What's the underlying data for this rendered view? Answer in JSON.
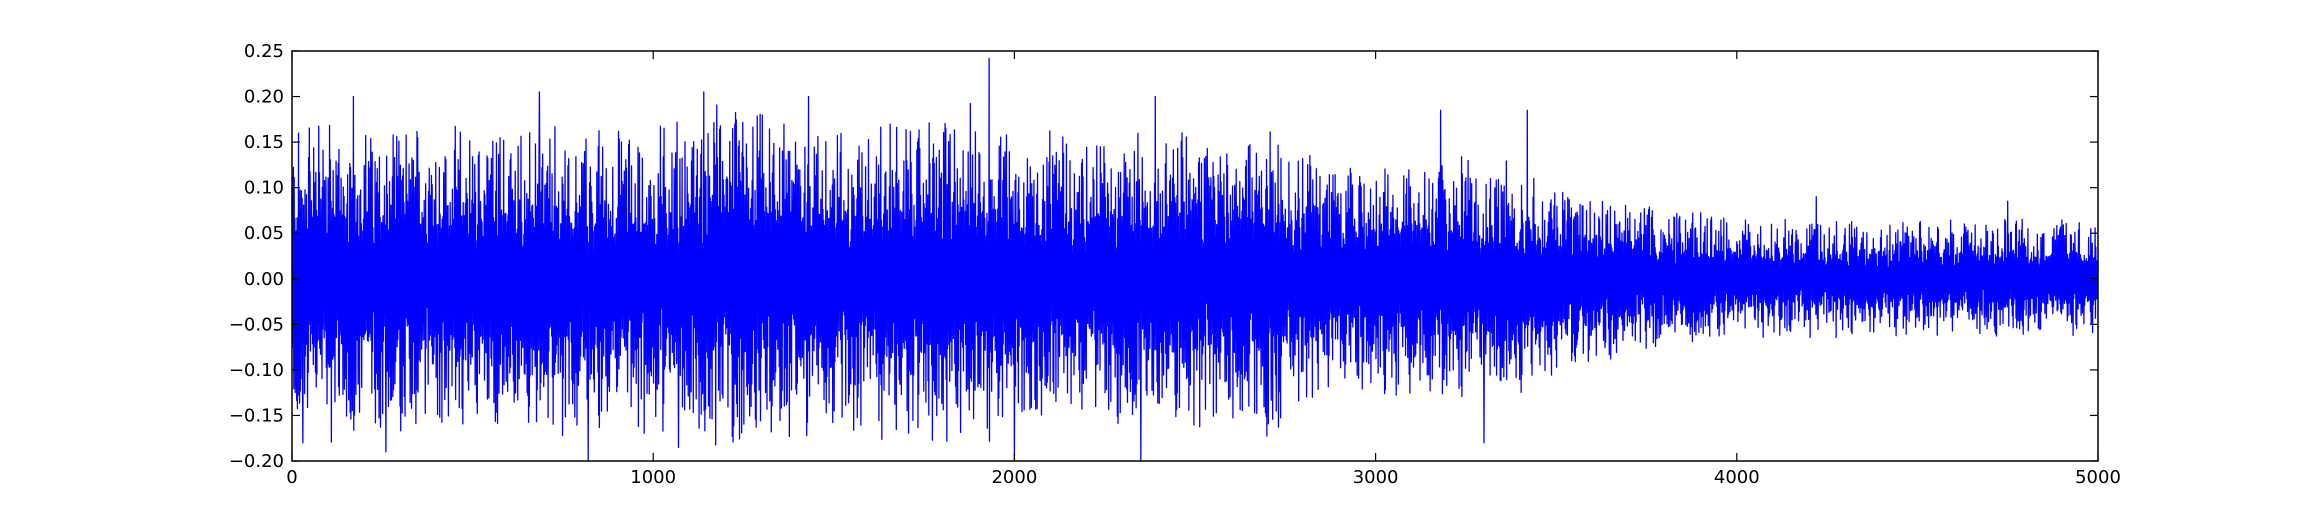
{
  "chart_data": {
    "type": "line",
    "title": "",
    "xlabel": "",
    "ylabel": "",
    "xlim": [
      0,
      5000
    ],
    "ylim": [
      -0.2,
      0.25
    ],
    "grid": false,
    "legend": "none",
    "x_ticks": [
      0,
      1000,
      2000,
      3000,
      4000,
      5000
    ],
    "x_tick_labels": [
      "0",
      "1000",
      "2000",
      "3000",
      "4000",
      "5000"
    ],
    "y_ticks": [
      -0.2,
      -0.15,
      -0.1,
      -0.05,
      0.0,
      0.05,
      0.1,
      0.15,
      0.2,
      0.25
    ],
    "y_tick_labels": [
      "−0.20",
      "−0.15",
      "−0.10",
      "−0.05",
      "0.00",
      "0.05",
      "0.10",
      "0.15",
      "0.20",
      "0.25"
    ],
    "series": [
      {
        "color": "#0000ff",
        "n_samples": 5000,
        "envelope": {
          "x": [
            0,
            500,
            1000,
            1200,
            1500,
            1900,
            2000,
            2500,
            2700,
            2800,
            2900,
            3000,
            3200,
            3400,
            3500,
            4000,
            4200,
            5000
          ],
          "amplitude": [
            0.14,
            0.13,
            0.13,
            0.15,
            0.13,
            0.15,
            0.12,
            0.13,
            0.13,
            0.12,
            0.09,
            0.1,
            0.11,
            0.1,
            0.08,
            0.05,
            0.05,
            0.05
          ]
        },
        "peaks": [
          {
            "x": 1930,
            "y": 0.242
          },
          {
            "x": 1140,
            "y": 0.205
          },
          {
            "x": 685,
            "y": 0.205
          },
          {
            "x": 2390,
            "y": 0.2
          },
          {
            "x": 170,
            "y": 0.2
          },
          {
            "x": 1430,
            "y": 0.2
          },
          {
            "x": 3180,
            "y": 0.185
          },
          {
            "x": 3420,
            "y": 0.185
          },
          {
            "x": 2000,
            "y": -0.2
          },
          {
            "x": 820,
            "y": -0.2
          },
          {
            "x": 2350,
            "y": -0.2
          },
          {
            "x": 1070,
            "y": -0.185
          },
          {
            "x": 260,
            "y": -0.19
          },
          {
            "x": 30,
            "y": -0.18
          },
          {
            "x": 3300,
            "y": -0.18
          },
          {
            "x": 4220,
            "y": 0.09
          },
          {
            "x": 4750,
            "y": 0.085
          }
        ]
      }
    ]
  }
}
